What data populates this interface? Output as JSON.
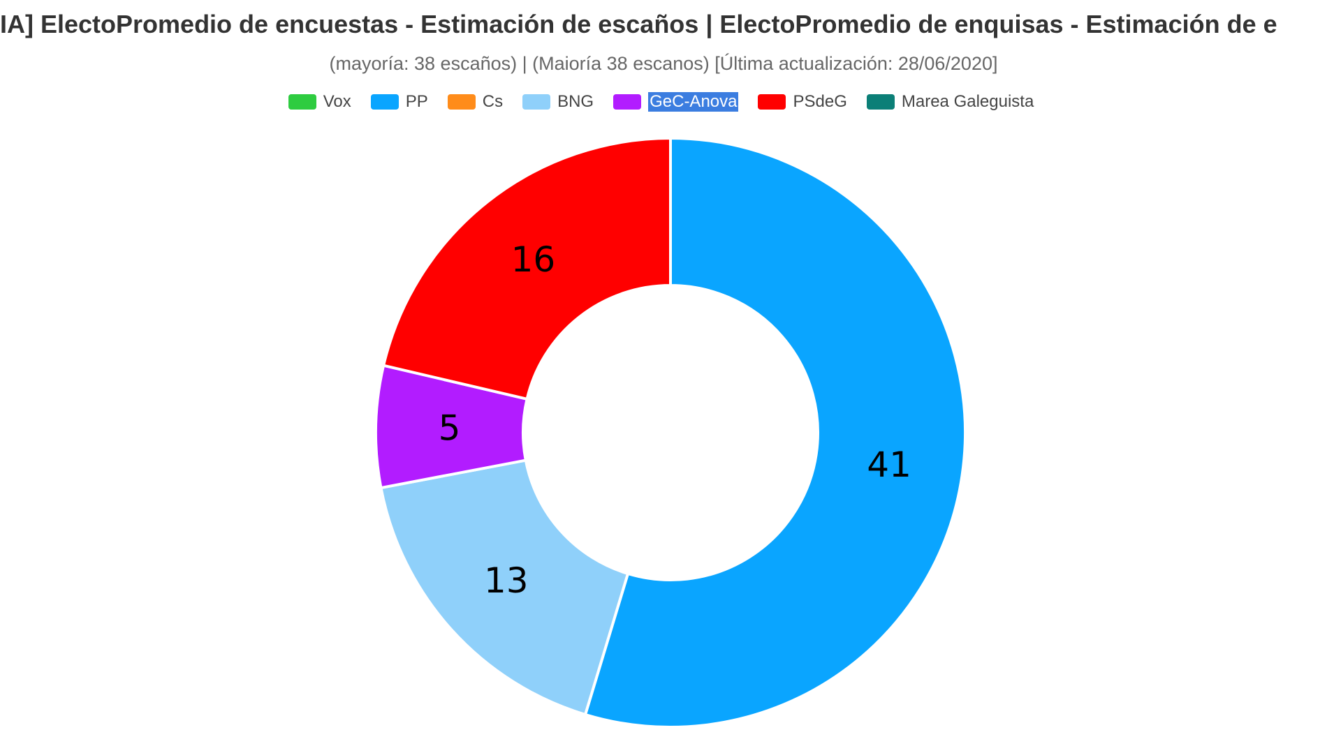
{
  "chart_data": {
    "type": "pie",
    "donut": true,
    "title": "IA] ElectoPromedio de encuestas - Estimación de escaños | ElectoPromedio de enquisas - Estimación de e",
    "subtitle": "(mayoría: 38 escaños) | (Maioría 38 escanos) [Última actualización: 28/06/2020]",
    "legend_position": "top",
    "categories": [
      "Vox",
      "PP",
      "Cs",
      "BNG",
      "GeC-Anova",
      "PSdeG",
      "Marea Galeguista"
    ],
    "values": [
      0,
      41,
      0,
      13,
      5,
      16,
      0
    ],
    "colors": [
      "#2ecc40",
      "#0aa5ff",
      "#ff8c1a",
      "#8fd0fa",
      "#b21cff",
      "#ff0000",
      "#0b7f77"
    ],
    "selected_legend_text": "GeC-Anova"
  }
}
